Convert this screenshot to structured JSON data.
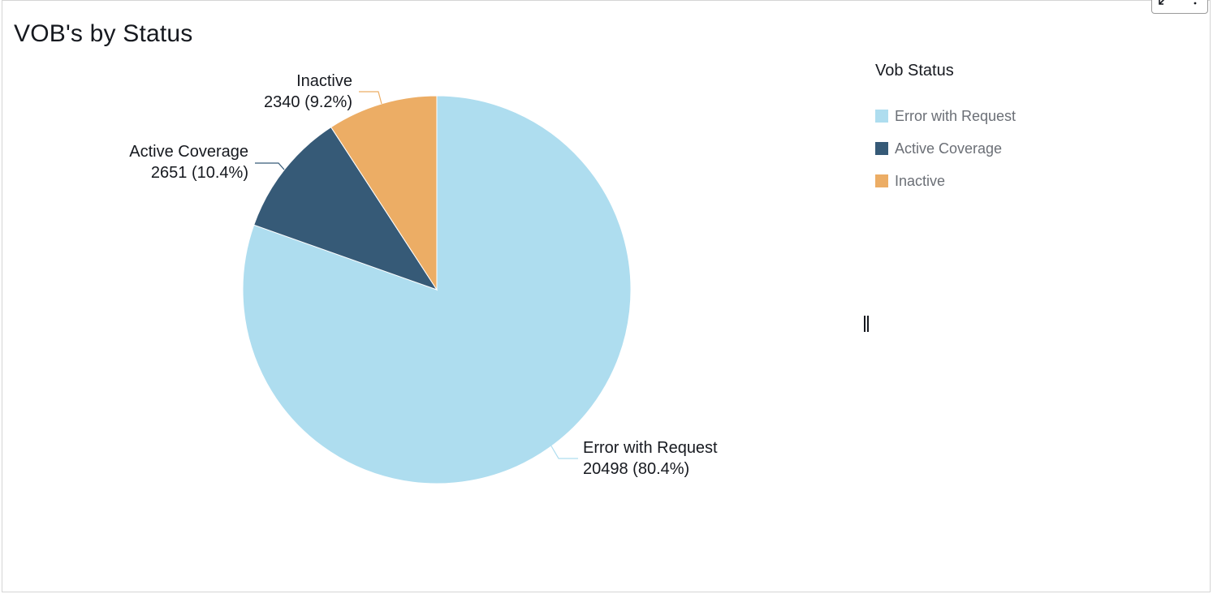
{
  "title": "VOB's by Status",
  "toolbar": {
    "expand_icon": "expand-arrow-icon",
    "more_icon": "more-vertical-icon"
  },
  "legend": {
    "title": "Vob Status",
    "placement": "right",
    "items": [
      {
        "label": "Error with Request",
        "color": "#aeddef"
      },
      {
        "label": "Active Coverage",
        "color": "#365a77"
      },
      {
        "label": "Inactive",
        "color": "#ecad65"
      }
    ]
  },
  "chart_data": {
    "type": "pie",
    "title": "VOB's by Status",
    "legend_title": "Vob Status",
    "slices": [
      {
        "label": "Error with Request",
        "value": 20498,
        "percent": 80.4,
        "display_value": "20498 (80.4%)",
        "color": "#aeddef"
      },
      {
        "label": "Active Coverage",
        "value": 2651,
        "percent": 10.4,
        "display_value": "2651 (10.4%)",
        "color": "#365a77"
      },
      {
        "label": "Inactive",
        "value": 2340,
        "percent": 9.2,
        "display_value": "2340 (9.2%)",
        "color": "#ecad65"
      }
    ]
  }
}
